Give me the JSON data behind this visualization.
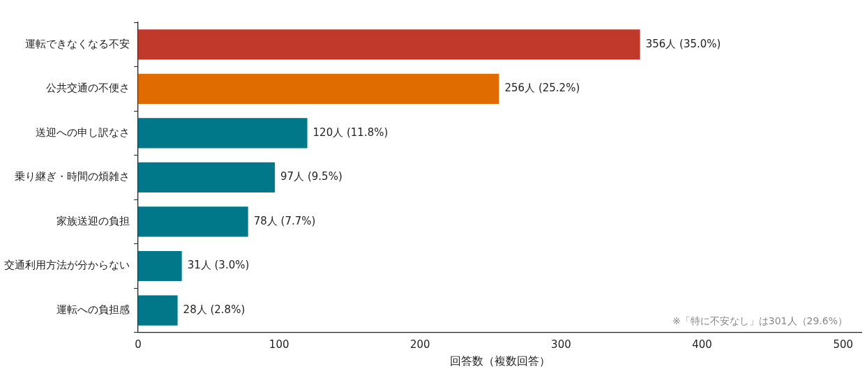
{
  "chart_data": {
    "type": "bar",
    "orientation": "horizontal",
    "categories": [
      "運転できなくなる不安",
      "公共交通の不便さ",
      "送迎への申し訳なさ",
      "乗り継ぎ・時間の煩雑さ",
      "家族送迎の負担",
      "交通利用方法が分からない",
      "運転への負担感"
    ],
    "values": [
      356,
      256,
      120,
      97,
      78,
      31,
      28
    ],
    "colors": [
      "#c0392b",
      "#e06c00",
      "#00788a",
      "#00788a",
      "#00788a",
      "#00788a",
      "#00788a"
    ],
    "value_labels": [
      "356人 (35.0%)",
      "256人 (25.2%)",
      "120人 (11.8%)",
      "97人 (9.5%)",
      "78人 (7.7%)",
      "31人 (3.0%)",
      "28人 (2.8%)"
    ],
    "xlabel": "回答数（複数回答）",
    "xlim": [
      0,
      513
    ],
    "xticks": [
      0,
      100,
      200,
      300,
      400,
      500
    ],
    "annotations": [
      "※「特に不安なし」は301人（29.6%）"
    ],
    "grid": false,
    "legend": false
  }
}
